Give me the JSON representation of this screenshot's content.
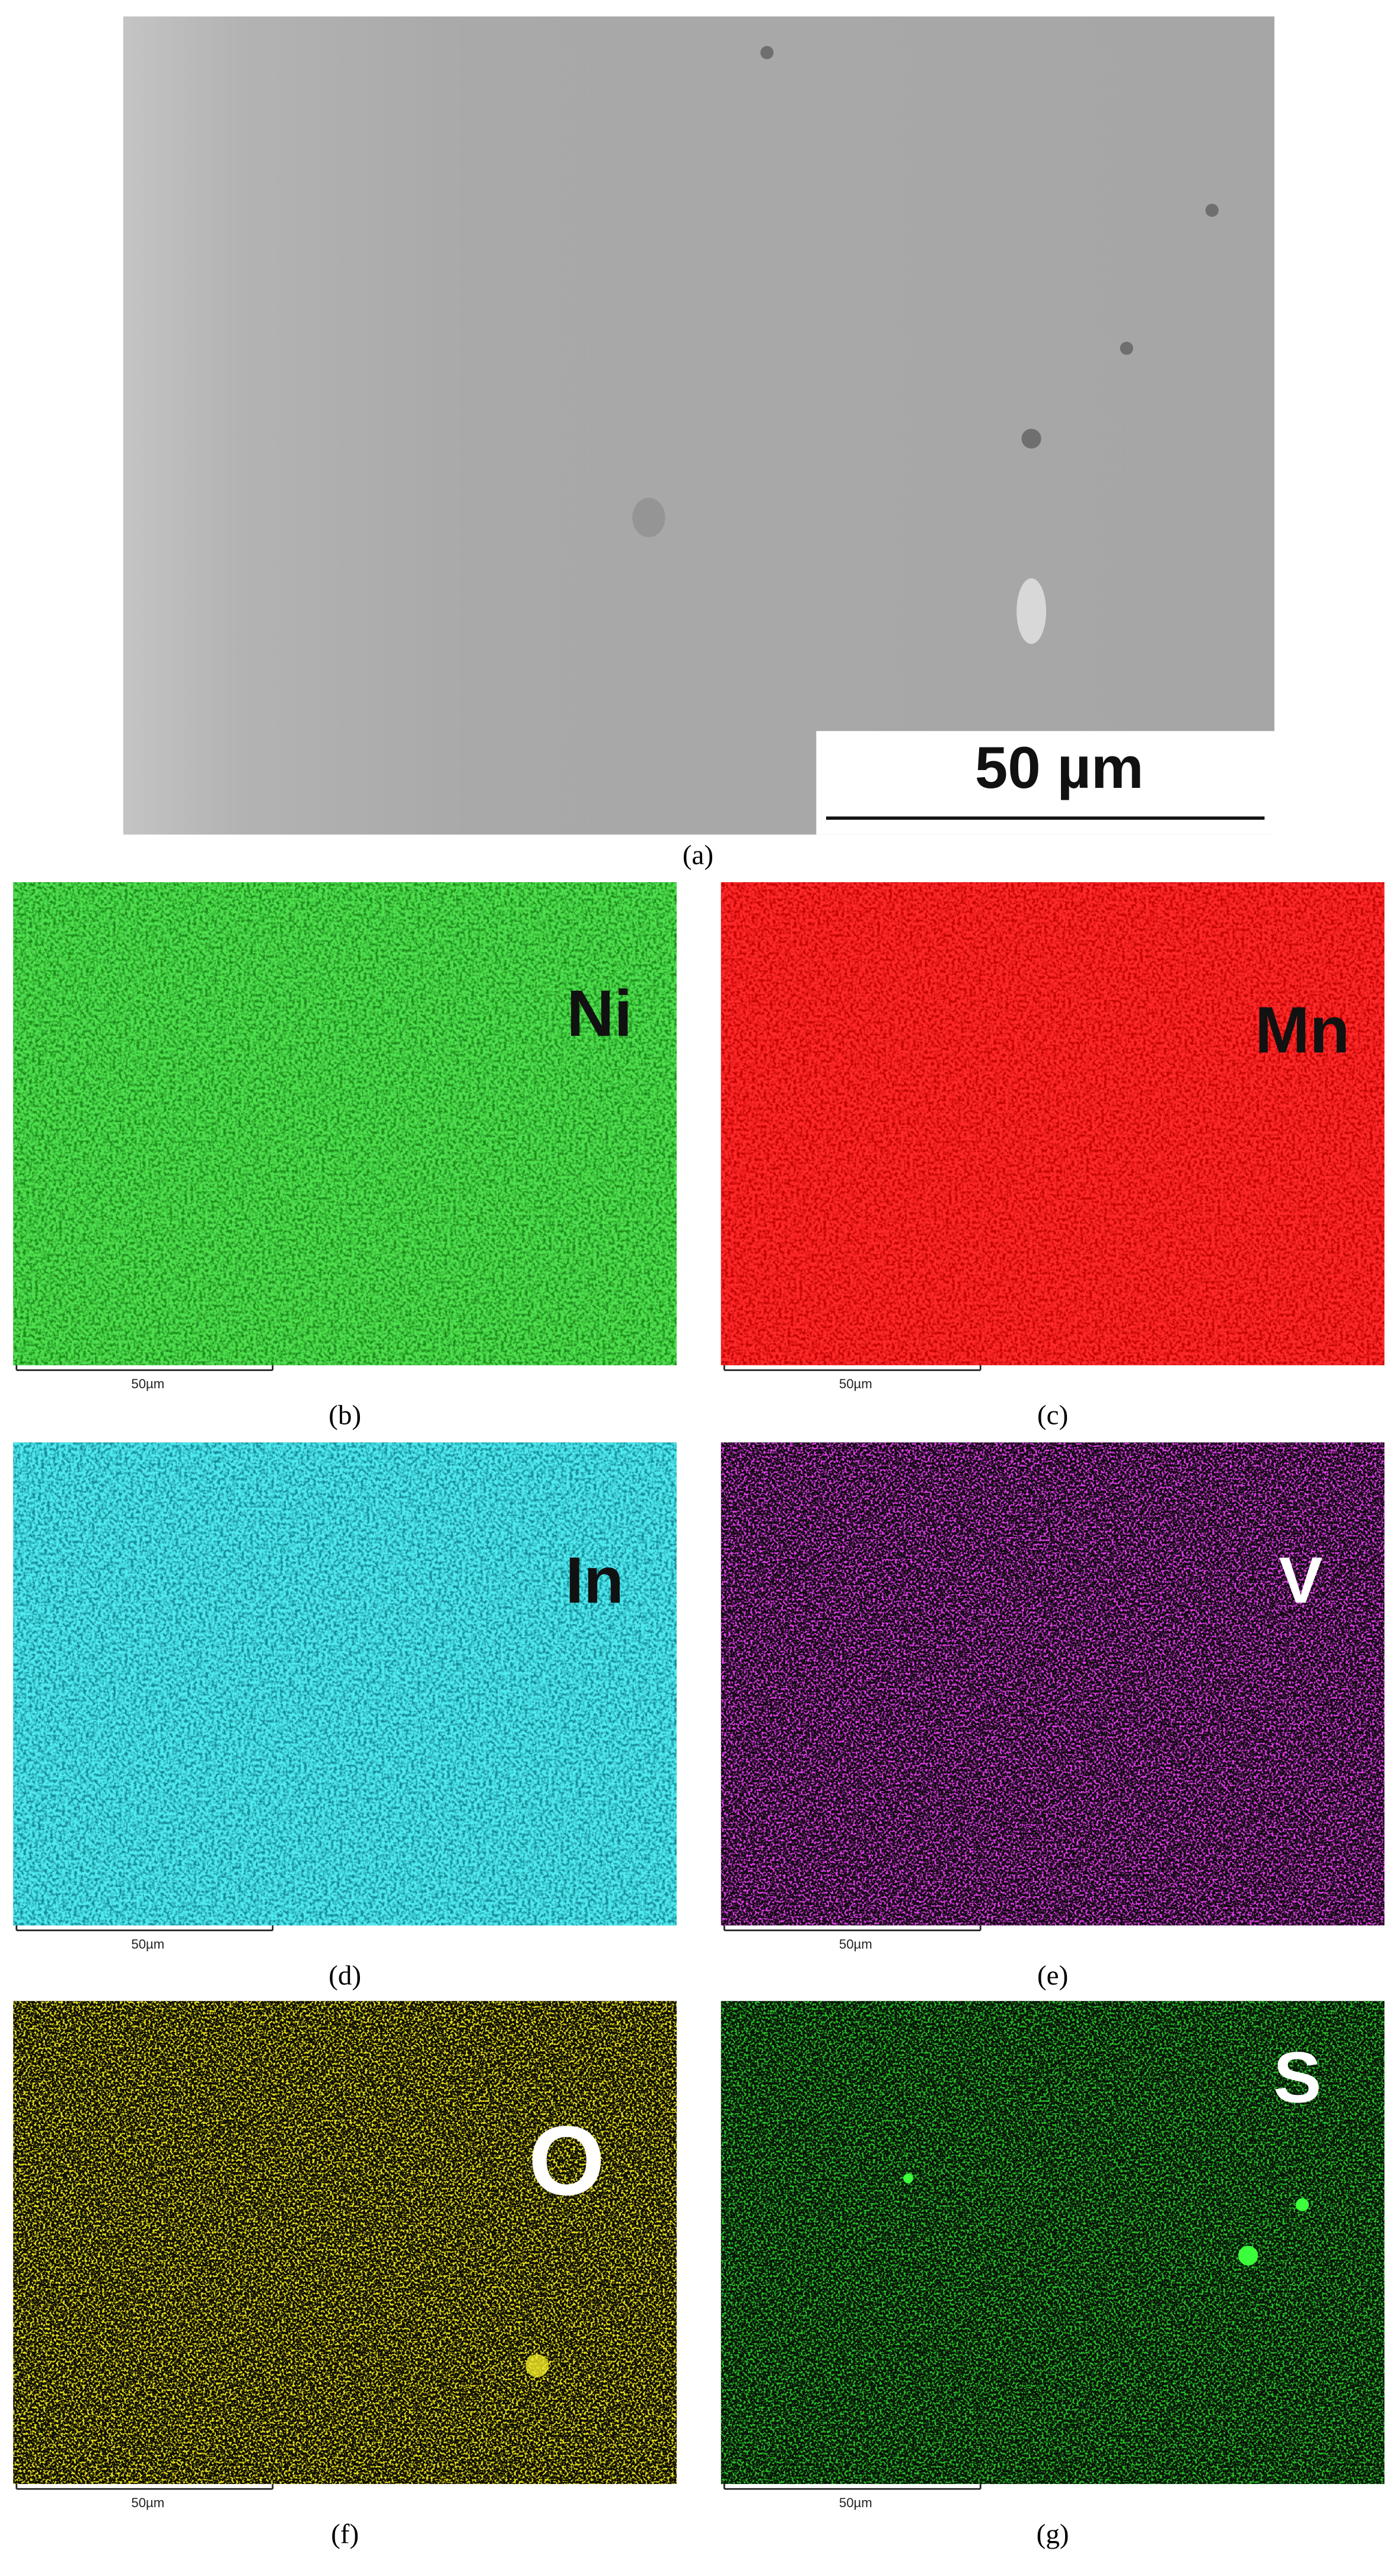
{
  "panels": [
    {
      "caption": "(a)",
      "scale_label": "50 µm"
    },
    {
      "caption": "(b)",
      "element": "Ni",
      "scale_label": "50µm"
    },
    {
      "caption": "(c)",
      "element": "Mn",
      "scale_label": "50µm"
    },
    {
      "caption": "(d)",
      "element": "In",
      "scale_label": "50µm"
    },
    {
      "caption": "(e)",
      "element": "V",
      "scale_label": "50µm"
    },
    {
      "caption": "(f)",
      "element": "O",
      "scale_label": "50µm"
    },
    {
      "caption": "(g)",
      "element": "S",
      "scale_label": "50µm"
    }
  ]
}
